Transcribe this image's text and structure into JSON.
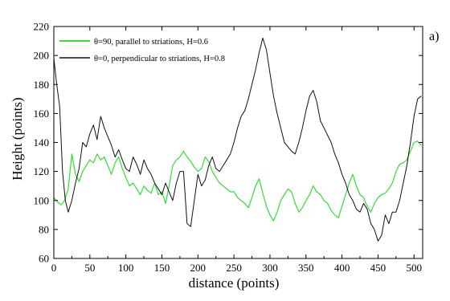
{
  "chart_data": {
    "type": "line",
    "panel_label": "a)",
    "xlabel": "distance (points)",
    "ylabel": "Height (points)",
    "xlim": [
      0,
      512
    ],
    "ylim": [
      60,
      220
    ],
    "xticks": [
      0,
      50,
      100,
      150,
      200,
      250,
      300,
      350,
      400,
      450,
      500
    ],
    "yticks": [
      60,
      80,
      100,
      120,
      140,
      160,
      180,
      200,
      220
    ],
    "grid": false,
    "legend_position": "top-left",
    "series": [
      {
        "name": "θ=90, parallel to striations, H=0.6",
        "color": "#33dd33",
        "x": [
          0,
          5,
          10,
          15,
          20,
          25,
          30,
          35,
          40,
          45,
          50,
          55,
          60,
          65,
          70,
          75,
          80,
          85,
          90,
          95,
          100,
          105,
          110,
          115,
          120,
          125,
          130,
          135,
          140,
          145,
          150,
          155,
          160,
          165,
          170,
          175,
          180,
          185,
          190,
          195,
          200,
          205,
          210,
          215,
          220,
          225,
          230,
          235,
          240,
          245,
          250,
          255,
          260,
          265,
          270,
          275,
          280,
          285,
          290,
          295,
          300,
          305,
          310,
          315,
          320,
          325,
          330,
          335,
          340,
          345,
          350,
          355,
          360,
          365,
          370,
          375,
          380,
          385,
          390,
          395,
          400,
          405,
          410,
          415,
          420,
          425,
          430,
          435,
          440,
          445,
          450,
          455,
          460,
          465,
          470,
          475,
          480,
          485,
          490,
          495,
          500,
          505,
          510
        ],
        "values": [
          102,
          99,
          97,
          100,
          108,
          132,
          118,
          113,
          120,
          124,
          128,
          126,
          132,
          128,
          130,
          124,
          118,
          126,
          130,
          122,
          116,
          110,
          112,
          108,
          104,
          110,
          107,
          105,
          112,
          104,
          106,
          98,
          110,
          124,
          128,
          130,
          134,
          130,
          127,
          123,
          120,
          122,
          130,
          127,
          120,
          116,
          112,
          110,
          108,
          106,
          106,
          102,
          100,
          98,
          95,
          102,
          110,
          115,
          105,
          96,
          90,
          86,
          92,
          100,
          104,
          108,
          106,
          98,
          92,
          95,
          100,
          104,
          110,
          106,
          104,
          100,
          98,
          93,
          90,
          88,
          96,
          104,
          112,
          118,
          110,
          104,
          102,
          96,
          92,
          98,
          102,
          104,
          105,
          108,
          112,
          120,
          125,
          126,
          128,
          134,
          140,
          141,
          138
        ]
      },
      {
        "name": "θ=0, perpendicular to striations, H=0.8",
        "color": "#111111",
        "x": [
          0,
          4,
          8,
          12,
          16,
          20,
          25,
          30,
          35,
          40,
          45,
          50,
          55,
          60,
          65,
          70,
          75,
          80,
          85,
          90,
          95,
          100,
          105,
          110,
          115,
          120,
          125,
          130,
          135,
          140,
          145,
          150,
          155,
          160,
          165,
          170,
          175,
          180,
          185,
          190,
          195,
          200,
          205,
          210,
          215,
          220,
          225,
          230,
          235,
          240,
          245,
          250,
          255,
          260,
          265,
          270,
          275,
          280,
          285,
          290,
          295,
          300,
          305,
          310,
          315,
          320,
          325,
          330,
          335,
          340,
          345,
          350,
          355,
          360,
          365,
          370,
          375,
          380,
          385,
          390,
          395,
          400,
          405,
          410,
          415,
          420,
          425,
          430,
          435,
          440,
          445,
          450,
          455,
          460,
          465,
          470,
          475,
          480,
          485,
          490,
          495,
          500,
          505,
          510
        ],
        "values": [
          198,
          180,
          165,
          120,
          100,
          92,
          100,
          112,
          122,
          140,
          137,
          146,
          152,
          142,
          158,
          150,
          144,
          138,
          130,
          135,
          128,
          122,
          120,
          130,
          125,
          118,
          128,
          122,
          118,
          112,
          108,
          104,
          112,
          106,
          100,
          112,
          120,
          120,
          84,
          82,
          100,
          118,
          110,
          114,
          124,
          130,
          122,
          120,
          124,
          128,
          132,
          140,
          150,
          158,
          162,
          170,
          180,
          190,
          202,
          212,
          204,
          188,
          172,
          160,
          150,
          140,
          137,
          134,
          132,
          140,
          150,
          162,
          172,
          176,
          168,
          155,
          150,
          145,
          140,
          132,
          126,
          118,
          112,
          104,
          100,
          94,
          92,
          98,
          94,
          84,
          80,
          72,
          76,
          90,
          84,
          92,
          92,
          100,
          112,
          124,
          140,
          158,
          170,
          172
        ]
      }
    ]
  }
}
